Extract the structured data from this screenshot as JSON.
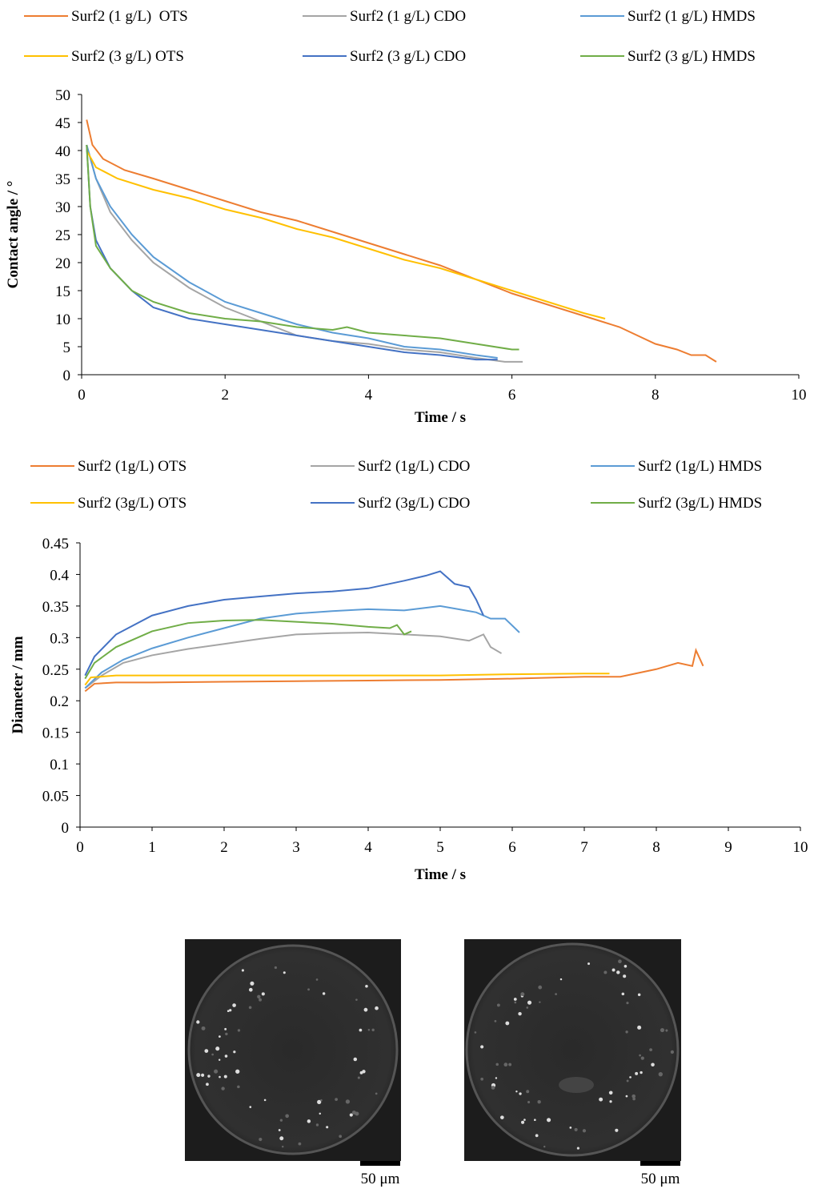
{
  "chart_data": [
    {
      "type": "line",
      "xlabel": "Time / s",
      "ylabel": "Contact angle / °",
      "xlim": [
        0,
        10
      ],
      "ylim": [
        0,
        50
      ],
      "xticks": [
        0,
        2,
        4,
        6,
        8,
        10
      ],
      "yticks": [
        0,
        5,
        10,
        15,
        20,
        25,
        30,
        35,
        40,
        45,
        50
      ],
      "series": [
        {
          "name": "Surf2 (1 g/L)  OTS",
          "color": "#ED7D31",
          "x": [
            0.07,
            0.15,
            0.3,
            0.6,
            1,
            1.5,
            2,
            2.5,
            3,
            3.5,
            4,
            4.5,
            5,
            5.5,
            6,
            6.5,
            7,
            7.5,
            8,
            8.3,
            8.5,
            8.7,
            8.85
          ],
          "values": [
            45.5,
            41,
            38.5,
            36.5,
            35,
            33,
            31,
            29,
            27.5,
            25.5,
            23.5,
            21.5,
            19.5,
            17,
            14.5,
            12.5,
            10.5,
            8.5,
            5.5,
            4.5,
            3.5,
            3.5,
            2.3
          ]
        },
        {
          "name": "Surf2 (1 g/L) CDO",
          "color": "#A5A5A5",
          "x": [
            0.07,
            0.2,
            0.4,
            0.7,
            1,
            1.5,
            2,
            2.5,
            3,
            3.5,
            4,
            4.5,
            5,
            5.5,
            5.9,
            6.15
          ],
          "values": [
            41,
            35,
            29,
            24,
            20,
            15.5,
            12,
            9.5,
            7,
            6,
            5.5,
            4.5,
            4,
            3,
            2.3,
            2.3
          ]
        },
        {
          "name": "Surf2 (1 g/L) HMDS",
          "color": "#5B9BD5",
          "x": [
            0.07,
            0.2,
            0.4,
            0.7,
            1,
            1.5,
            2,
            2.5,
            3,
            3.5,
            4,
            4.5,
            5,
            5.5,
            5.8
          ],
          "values": [
            41,
            35,
            30,
            25,
            21,
            16.5,
            13,
            11,
            9,
            7.5,
            6.5,
            5,
            4.5,
            3.5,
            3
          ]
        },
        {
          "name": "Surf2 (3 g/L) OTS",
          "color": "#FFC000",
          "x": [
            0.07,
            0.2,
            0.5,
            1,
            1.5,
            2,
            2.5,
            3,
            3.5,
            4,
            4.5,
            5,
            5.5,
            6,
            6.5,
            7,
            7.3
          ],
          "values": [
            40,
            37,
            35,
            33,
            31.5,
            29.5,
            28,
            26,
            24.5,
            22.5,
            20.5,
            19,
            17,
            15,
            13,
            11,
            10
          ]
        },
        {
          "name": "Surf2 (3 g/L) CDO",
          "color": "#4472C4",
          "x": [
            0.07,
            0.12,
            0.2,
            0.4,
            0.7,
            1,
            1.5,
            2,
            2.5,
            3,
            3.5,
            4,
            4.5,
            5,
            5.5,
            5.8
          ],
          "values": [
            41,
            30,
            24,
            19,
            15,
            12,
            10,
            9,
            8,
            7,
            6,
            5,
            4,
            3.5,
            2.7,
            2.7
          ]
        },
        {
          "name": "Surf2 (3 g/L) HMDS",
          "color": "#70AD47",
          "x": [
            0.07,
            0.12,
            0.2,
            0.4,
            0.7,
            1,
            1.5,
            2,
            2.5,
            3,
            3.5,
            3.7,
            4,
            4.5,
            5,
            5.5,
            6,
            6.1
          ],
          "values": [
            41,
            30,
            23,
            19,
            15,
            13,
            11,
            10,
            9.5,
            8.5,
            8,
            8.5,
            7.5,
            7,
            6.5,
            5.5,
            4.5,
            4.5
          ]
        }
      ]
    },
    {
      "type": "line",
      "xlabel": "Time / s",
      "ylabel": "Diameter / mm",
      "xlim": [
        0,
        10
      ],
      "ylim": [
        0,
        0.45
      ],
      "xticks": [
        0,
        1,
        2,
        3,
        4,
        5,
        6,
        7,
        8,
        9,
        10
      ],
      "yticks": [
        0,
        0.05,
        0.1,
        0.15,
        0.2,
        0.25,
        0.3,
        0.35,
        0.4,
        0.45
      ],
      "series": [
        {
          "name": "Surf2 (1g/L) OTS",
          "color": "#ED7D31",
          "x": [
            0.07,
            0.2,
            0.5,
            1,
            2,
            3,
            4,
            5,
            6,
            7,
            7.5,
            8,
            8.3,
            8.5,
            8.55,
            8.65
          ],
          "values": [
            0.215,
            0.227,
            0.229,
            0.229,
            0.23,
            0.231,
            0.232,
            0.233,
            0.235,
            0.238,
            0.238,
            0.25,
            0.26,
            0.255,
            0.28,
            0.255
          ]
        },
        {
          "name": "Surf2 (1g/L) CDO",
          "color": "#A5A5A5",
          "x": [
            0.07,
            0.3,
            0.6,
            1,
            1.5,
            2,
            2.5,
            3,
            3.5,
            4,
            4.5,
            5,
            5.4,
            5.6,
            5.7,
            5.85
          ],
          "values": [
            0.22,
            0.24,
            0.26,
            0.272,
            0.282,
            0.29,
            0.298,
            0.305,
            0.307,
            0.308,
            0.305,
            0.302,
            0.295,
            0.305,
            0.285,
            0.275
          ]
        },
        {
          "name": "Surf2 (1g/L) HMDS",
          "color": "#5B9BD5",
          "x": [
            0.07,
            0.3,
            0.6,
            1,
            1.5,
            2,
            2.5,
            3,
            3.5,
            4,
            4.5,
            5,
            5.5,
            5.7,
            5.9,
            6.1
          ],
          "values": [
            0.22,
            0.245,
            0.265,
            0.283,
            0.3,
            0.315,
            0.33,
            0.338,
            0.342,
            0.345,
            0.343,
            0.35,
            0.34,
            0.33,
            0.33,
            0.308
          ]
        },
        {
          "name": "Surf2 (3g/L) OTS",
          "color": "#FFC000",
          "x": [
            0.07,
            0.15,
            0.5,
            1,
            2,
            3,
            4,
            5,
            6,
            7,
            7.35
          ],
          "values": [
            0.225,
            0.237,
            0.24,
            0.24,
            0.24,
            0.24,
            0.24,
            0.24,
            0.242,
            0.243,
            0.243
          ]
        },
        {
          "name": "Surf2 (3g/L) CDO",
          "color": "#4472C4",
          "x": [
            0.07,
            0.2,
            0.5,
            1,
            1.5,
            2,
            2.5,
            3,
            3.5,
            4,
            4.5,
            4.8,
            5,
            5.2,
            5.4,
            5.5,
            5.6
          ],
          "values": [
            0.24,
            0.27,
            0.305,
            0.335,
            0.35,
            0.36,
            0.365,
            0.37,
            0.373,
            0.378,
            0.39,
            0.398,
            0.405,
            0.385,
            0.38,
            0.36,
            0.335
          ]
        },
        {
          "name": "Surf2 (3g/L) HMDS",
          "color": "#70AD47",
          "x": [
            0.07,
            0.2,
            0.5,
            1,
            1.5,
            2,
            2.5,
            3,
            3.5,
            4,
            4.3,
            4.4,
            4.5,
            4.6
          ],
          "values": [
            0.235,
            0.26,
            0.285,
            0.31,
            0.323,
            0.327,
            0.328,
            0.325,
            0.322,
            0.317,
            0.315,
            0.32,
            0.305,
            0.31
          ]
        }
      ]
    }
  ],
  "images": [
    {
      "scale_label": "50 μm"
    },
    {
      "scale_label": "50 μm"
    }
  ]
}
